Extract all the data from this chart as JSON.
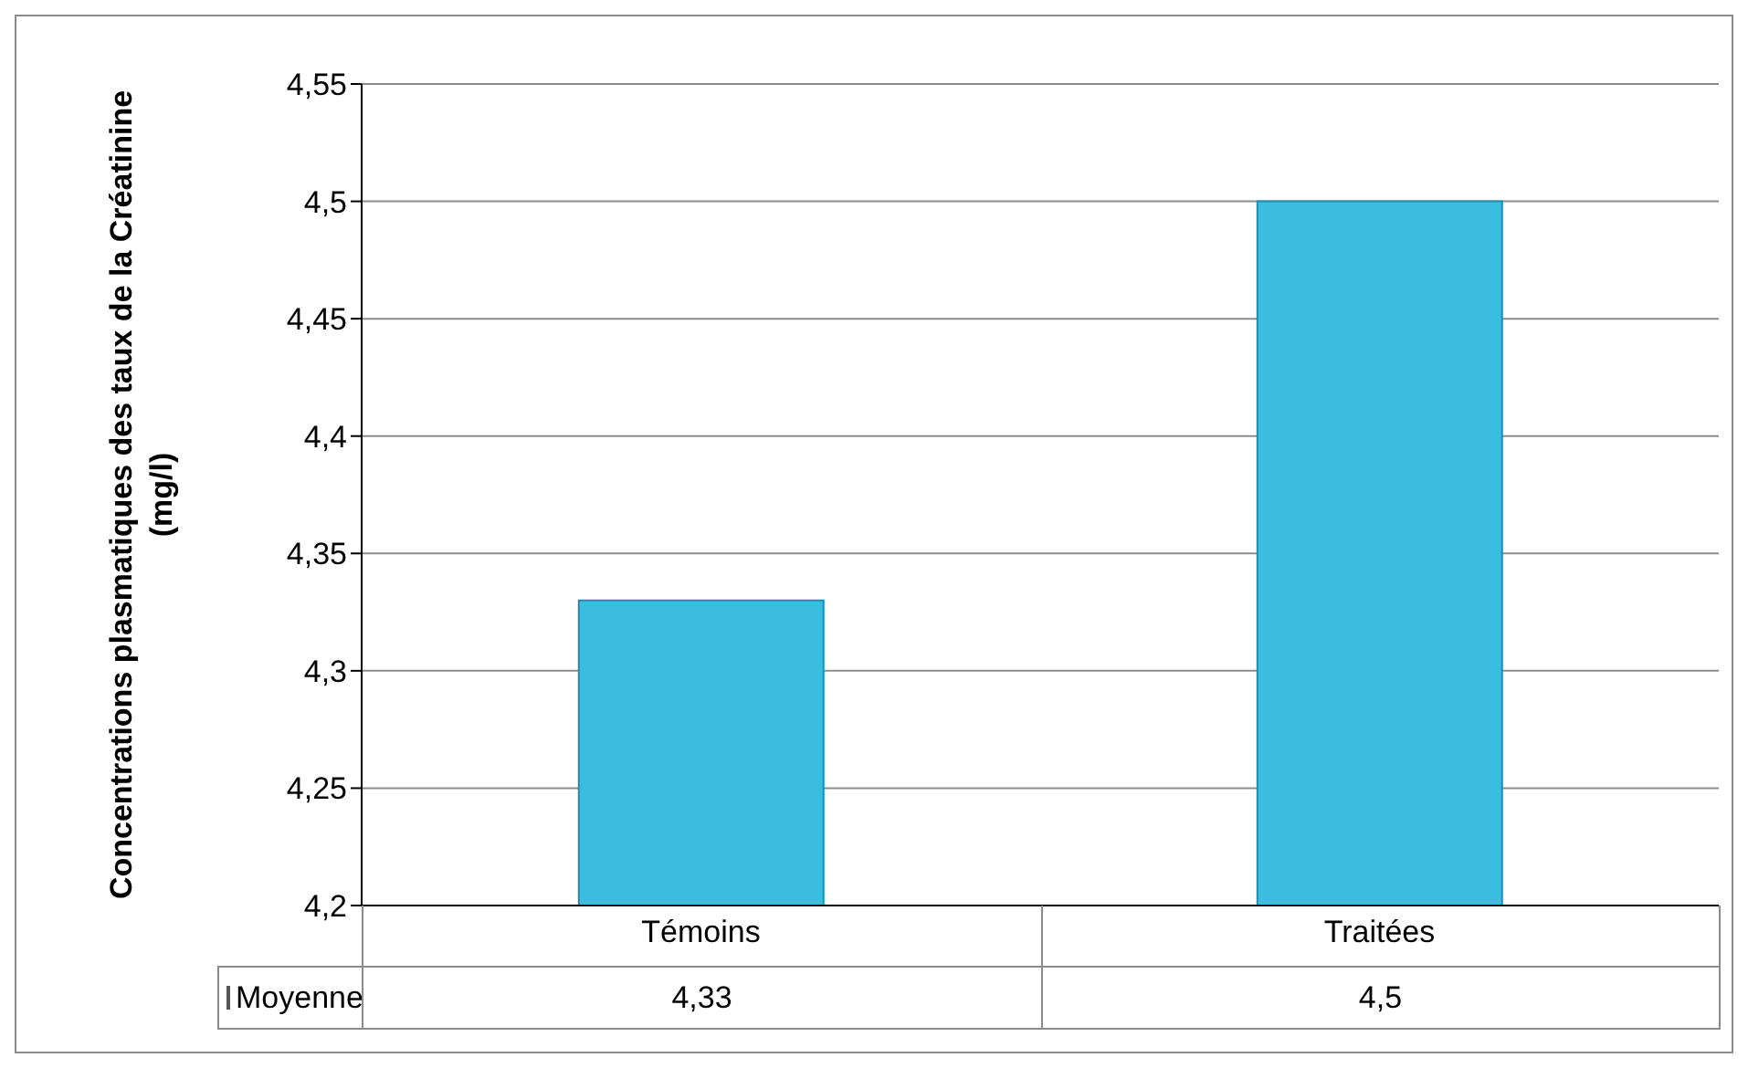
{
  "chart_data": {
    "type": "bar",
    "ylabel": "Concentrations plasmatiques des taux de la Créatinine (mg/l)",
    "categories": [
      "Témoins",
      "Traitées"
    ],
    "series": [
      {
        "name": "Moyenne",
        "color": "#3bbde0",
        "values": [
          4.33,
          4.5
        ],
        "value_labels": [
          "4,33",
          "4,5"
        ]
      }
    ],
    "ylim": [
      4.2,
      4.55
    ],
    "yticks": [
      {
        "value": 4.2,
        "label": "4,2"
      },
      {
        "value": 4.25,
        "label": "4,25"
      },
      {
        "value": 4.3,
        "label": "4,3"
      },
      {
        "value": 4.35,
        "label": "4,35"
      },
      {
        "value": 4.4,
        "label": "4,4"
      },
      {
        "value": 4.45,
        "label": "4,45"
      },
      {
        "value": 4.5,
        "label": "4,5"
      },
      {
        "value": 4.55,
        "label": "4,55"
      }
    ],
    "grid": "y",
    "legend": "bottom"
  }
}
